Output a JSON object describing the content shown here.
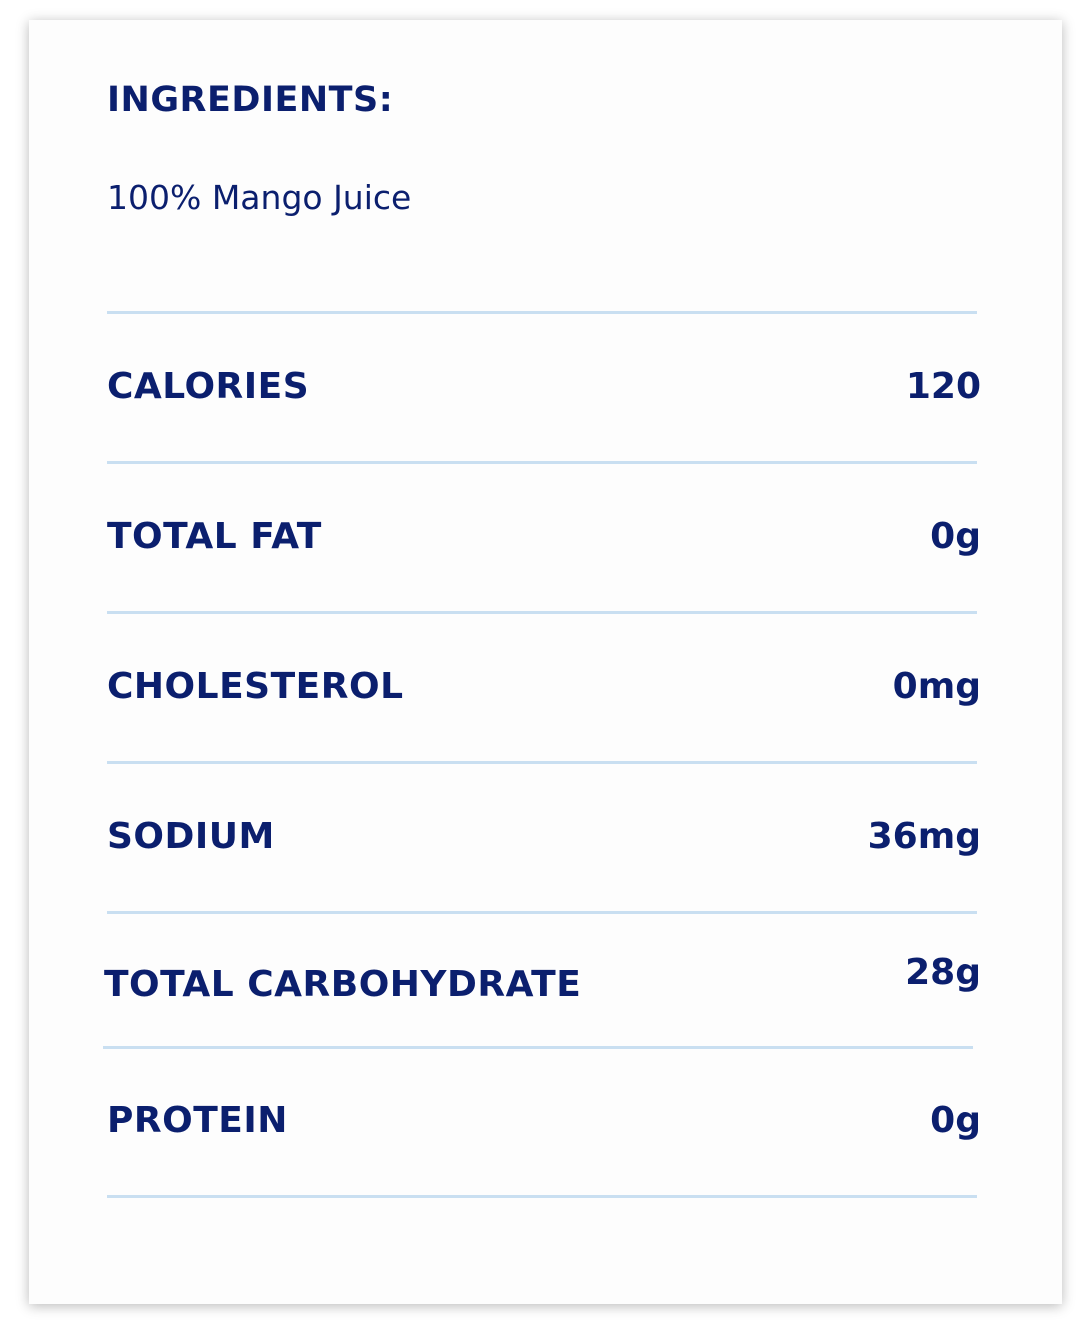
{
  "ingredients": {
    "heading": "INGREDIENTS:",
    "text": "100% Mango Juice"
  },
  "nutrition": [
    {
      "label": "CALORIES",
      "value": "120"
    },
    {
      "label": "TOTAL FAT",
      "value": "0g"
    },
    {
      "label": "CHOLESTEROL",
      "value": "0mg"
    },
    {
      "label": "SODIUM",
      "value": "36mg"
    },
    {
      "label": "TOTAL CARBOHYDRATE",
      "value": "28g"
    },
    {
      "label": "PROTEIN",
      "value": "0g"
    }
  ],
  "colors": {
    "text": "#0b1f6e",
    "divider": "#c9dff1"
  }
}
